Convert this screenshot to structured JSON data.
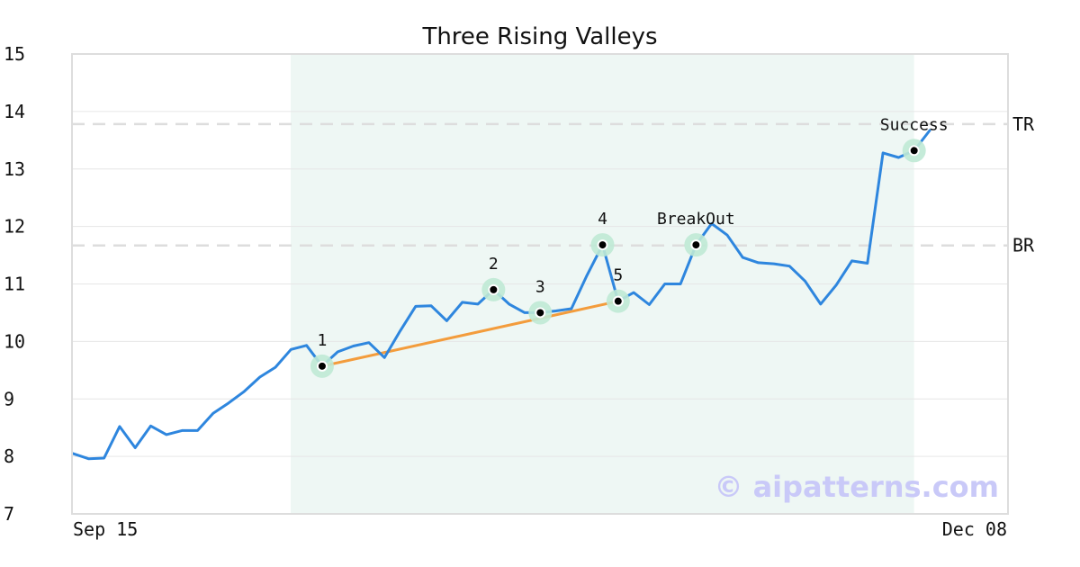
{
  "chart_data": {
    "type": "line",
    "title": "Three Rising Valleys",
    "xlabel": "",
    "ylabel": "",
    "ylim": [
      7,
      15
    ],
    "yticks": [
      "7",
      "8",
      "9",
      "10",
      "11",
      "12",
      "13",
      "14",
      "15"
    ],
    "x_tick_labels": [
      "Sep 15",
      "Dec 08"
    ],
    "grid": "horizontal",
    "series": [
      {
        "color": "#2e86de",
        "values": [
          8.05,
          7.96,
          7.97,
          8.52,
          8.15,
          8.53,
          8.38,
          8.45,
          8.45,
          8.75,
          8.93,
          9.13,
          9.38,
          9.55,
          9.86,
          9.93,
          9.57,
          9.82,
          9.92,
          9.98,
          9.72,
          10.18,
          10.61,
          10.62,
          10.36,
          10.68,
          10.65,
          10.9,
          10.65,
          10.5,
          10.5,
          10.53,
          10.57,
          11.15,
          11.68,
          10.7,
          10.85,
          10.64,
          11.0,
          11.0,
          11.68,
          12.05,
          11.85,
          11.46,
          11.37,
          11.35,
          11.31,
          11.05,
          10.65,
          10.98,
          11.4,
          11.36,
          13.28,
          13.2,
          13.32,
          13.67
        ]
      }
    ],
    "highlight_region": {
      "start_index": 14,
      "end_index": 54,
      "color": "#eef7f4"
    },
    "trendline": {
      "color": "#f39c3c",
      "from": {
        "index": 16,
        "value": 9.57
      },
      "to": {
        "index": 35,
        "value": 10.7
      }
    },
    "reference_lines": [
      {
        "label": "TR",
        "value": 13.78
      },
      {
        "label": "BR",
        "value": 11.67
      }
    ],
    "points": [
      {
        "label": "1",
        "index": 16,
        "value": 9.57
      },
      {
        "label": "2",
        "index": 27,
        "value": 10.9
      },
      {
        "label": "3",
        "index": 30,
        "value": 10.5
      },
      {
        "label": "4",
        "index": 34,
        "value": 11.68
      },
      {
        "label": "5",
        "index": 35,
        "value": 10.7
      },
      {
        "label": "BreakOut",
        "index": 40,
        "value": 11.68
      },
      {
        "label": "Success",
        "index": 54,
        "value": 13.32
      }
    ],
    "watermark": "© aipatterns.com"
  }
}
